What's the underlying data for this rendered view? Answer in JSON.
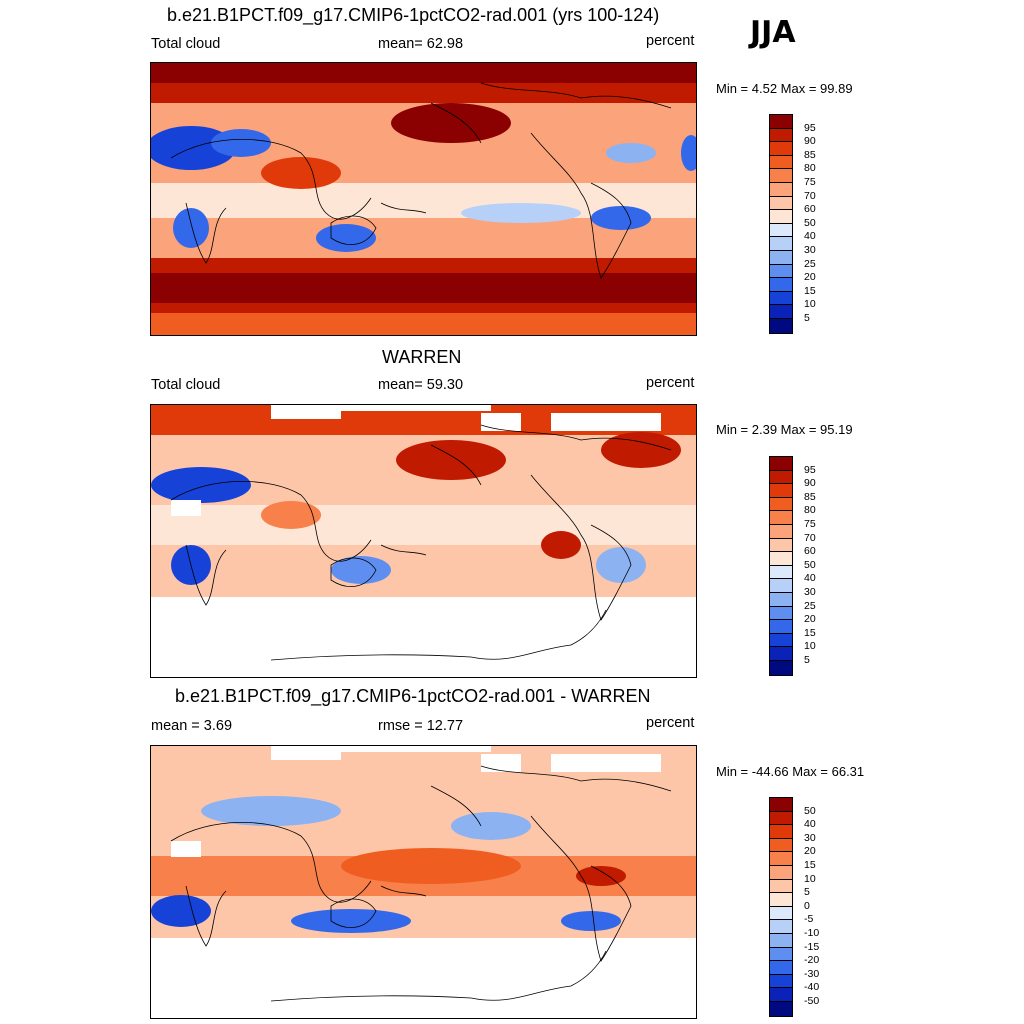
{
  "season": "JJA",
  "panels": [
    {
      "title": "b.e21.B1PCT.f09_g17.CMIP6-1pctCO2-rad.001 (yrs 100-124)",
      "left_label": "Total cloud",
      "center_label": "mean=  62.98",
      "right_label": "percent",
      "minmax": "Min =   4.52 Max =  99.89",
      "colorbar": {
        "labels": [
          "95",
          "90",
          "85",
          "80",
          "75",
          "70",
          "60",
          "50",
          "40",
          "30",
          "25",
          "20",
          "15",
          "10",
          "5"
        ],
        "colors": [
          "#8b0000",
          "#c01a00",
          "#e03a0a",
          "#f05d20",
          "#f8804a",
          "#fba37a",
          "#fdc6a8",
          "#fde6d6",
          "#dbe9fb",
          "#b6d0f7",
          "#8cb2f2",
          "#5e8ff0",
          "#3468ea",
          "#1642d8",
          "#0a22b8",
          "#000a80"
        ]
      },
      "masked": false,
      "style": "model"
    },
    {
      "title": "WARREN",
      "left_label": "Total cloud",
      "center_label": "mean=  59.30",
      "right_label": "percent",
      "minmax": "Min =   2.39 Max =  95.19",
      "colorbar": {
        "labels": [
          "95",
          "90",
          "85",
          "80",
          "75",
          "70",
          "60",
          "50",
          "40",
          "30",
          "25",
          "20",
          "15",
          "10",
          "5"
        ],
        "colors": [
          "#8b0000",
          "#c01a00",
          "#e03a0a",
          "#f05d20",
          "#f8804a",
          "#fba37a",
          "#fdc6a8",
          "#fde6d6",
          "#dbe9fb",
          "#b6d0f7",
          "#8cb2f2",
          "#5e8ff0",
          "#3468ea",
          "#1642d8",
          "#0a22b8",
          "#000a80"
        ]
      },
      "masked": true,
      "style": "obs"
    },
    {
      "title": "b.e21.B1PCT.f09_g17.CMIP6-1pctCO2-rad.001 - WARREN",
      "left_label": "mean =   3.69",
      "center_label": "rmse =  12.77",
      "right_label": "percent",
      "minmax": "Min = -44.66 Max =  66.31",
      "colorbar": {
        "labels": [
          "50",
          "40",
          "30",
          "20",
          "15",
          "10",
          "5",
          "0",
          "-5",
          "-10",
          "-15",
          "-20",
          "-30",
          "-40",
          "-50"
        ],
        "colors": [
          "#8b0000",
          "#c01a00",
          "#e03a0a",
          "#f05d20",
          "#f8804a",
          "#fba37a",
          "#fdc6a8",
          "#fde6d6",
          "#dbe9fb",
          "#b6d0f7",
          "#8cb2f2",
          "#5e8ff0",
          "#3468ea",
          "#1642d8",
          "#0a22b8",
          "#000a80"
        ]
      },
      "masked": true,
      "style": "diff"
    }
  ]
}
